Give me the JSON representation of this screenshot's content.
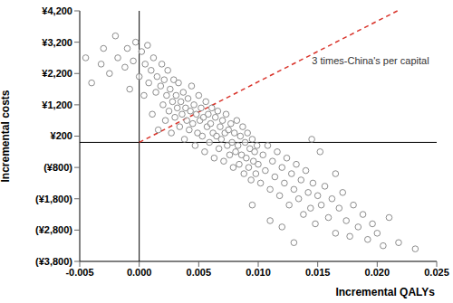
{
  "chart_data": {
    "type": "scatter",
    "x_label": "Incremental QALYs",
    "y_label": "Incremental costs",
    "color": "#808080",
    "marker": "circle",
    "grid": false,
    "xlim": [
      -0.005,
      0.025
    ],
    "xticks": [
      -0.005,
      {
        "value": 0,
        "label": "0.000"
      },
      0.005,
      {
        "value": 0.01,
        "label": "0.010"
      },
      0.015,
      {
        "value": 0.02,
        "label": "0.020"
      },
      0.025
    ],
    "ylim": [
      -3800,
      4200
    ],
    "yticks": [
      {
        "value": 4200,
        "label": "¥4,200"
      },
      {
        "value": 3200,
        "label": "¥3,200"
      },
      {
        "value": 2200,
        "label": "¥2,200"
      },
      {
        "value": 1200,
        "label": "¥1,200"
      },
      {
        "value": 200,
        "label": "¥200"
      },
      {
        "value": -800,
        "label": "(¥800)"
      },
      {
        "value": -1800,
        "label": "(¥1,800)"
      },
      {
        "value": -2800,
        "label": "(¥2,800)"
      },
      {
        "value": -3800,
        "label": "(¥3,800)"
      }
    ],
    "annotations": [
      {
        "text": "3 times-China's per capital",
        "x": [
          0,
          0.0217
        ],
        "y": [
          0,
          4200
        ],
        "color": "#d9342b",
        "line_style": "dashed"
      }
    ],
    "x": [
      -0.0045,
      -0.004,
      -0.0032,
      -0.003,
      -0.0025,
      -0.002,
      -0.0018,
      -0.0012,
      -0.001,
      -0.0008,
      -0.0005,
      -0.0003,
      0.0,
      0.0002,
      0.0004,
      0.0005,
      0.0007,
      0.0008,
      0.001,
      0.0011,
      0.0012,
      0.0014,
      0.0015,
      0.0016,
      0.0018,
      0.0019,
      0.002,
      0.0021,
      0.0022,
      0.0023,
      0.0024,
      0.0025,
      0.0026,
      0.0027,
      0.0028,
      0.0029,
      0.003,
      0.0031,
      0.0032,
      0.0033,
      0.0034,
      0.0035,
      0.0036,
      0.0037,
      0.0038,
      0.0039,
      0.004,
      0.0041,
      0.0042,
      0.0043,
      0.0044,
      0.0045,
      0.0046,
      0.0047,
      0.0048,
      0.0049,
      0.005,
      0.0051,
      0.0052,
      0.0053,
      0.0054,
      0.0055,
      0.0056,
      0.0057,
      0.0058,
      0.0059,
      0.006,
      0.0061,
      0.0062,
      0.0063,
      0.0064,
      0.0065,
      0.0066,
      0.0067,
      0.0068,
      0.0069,
      0.007,
      0.0071,
      0.0072,
      0.0073,
      0.0074,
      0.0075,
      0.0076,
      0.0077,
      0.0078,
      0.0079,
      0.008,
      0.0081,
      0.0082,
      0.0083,
      0.0084,
      0.0085,
      0.0086,
      0.0087,
      0.0088,
      0.0089,
      0.009,
      0.0091,
      0.0092,
      0.0093,
      0.0094,
      0.0095,
      0.0096,
      0.0097,
      0.0098,
      0.0099,
      0.01,
      0.0102,
      0.0104,
      0.0106,
      0.0108,
      0.011,
      0.0112,
      0.0114,
      0.0116,
      0.0118,
      0.012,
      0.0122,
      0.0124,
      0.0126,
      0.0128,
      0.013,
      0.0132,
      0.0134,
      0.0136,
      0.0138,
      0.014,
      0.0142,
      0.0144,
      0.0146,
      0.0148,
      0.015,
      0.0153,
      0.0156,
      0.0159,
      0.0162,
      0.0165,
      0.0168,
      0.0171,
      0.0174,
      0.0177,
      0.018,
      0.0184,
      0.0188,
      0.0192,
      0.0196,
      0.02,
      0.0205,
      0.021,
      0.0218,
      0.0232,
      0.0152,
      0.0145,
      0.0165,
      0.0095,
      0.011,
      0.013,
      0.012
    ],
    "values": [
      2700,
      1900,
      2500,
      3000,
      2200,
      3400,
      2700,
      2400,
      3000,
      1700,
      2600,
      3200,
      2100,
      2900,
      1500,
      2500,
      3100,
      1900,
      2300,
      900,
      2700,
      1600,
      2100,
      400,
      1800,
      2500,
      1200,
      2000,
      700,
      1500,
      2300,
      1000,
      1700,
      300,
      1300,
      2000,
      800,
      1500,
      1100,
      1900,
      500,
      1300,
      900,
      1600,
      100,
      1100,
      700,
      1400,
      400,
      1000,
      1800,
      600,
      1200,
      -100,
      900,
      300,
      1500,
      700,
      1100,
      200,
      800,
      -300,
      1300,
      500,
      900,
      0,
      600,
      1100,
      300,
      -500,
      800,
      200,
      1000,
      -200,
      500,
      100,
      700,
      -600,
      300,
      900,
      -100,
      400,
      -400,
      600,
      0,
      -800,
      300,
      -300,
      700,
      -100,
      -700,
      200,
      -400,
      500,
      -1000,
      0,
      -500,
      300,
      -800,
      -200,
      -1200,
      100,
      -600,
      -300,
      -1000,
      -100,
      -700,
      -1300,
      -400,
      -900,
      -100,
      -1500,
      -600,
      -1100,
      -300,
      -1700,
      -800,
      -1300,
      -500,
      -2000,
      -1000,
      -1500,
      -700,
      -1800,
      -1200,
      -2300,
      -900,
      -1600,
      -2100,
      -1300,
      -2600,
      -1700,
      -2000,
      -1400,
      -2400,
      -1800,
      -2900,
      -2100,
      -1600,
      -2500,
      -3000,
      -2000,
      -2700,
      -2300,
      -3100,
      -2600,
      -2900,
      -3300,
      -2400,
      -3200,
      -3400,
      -300,
      100,
      -1000,
      -2000,
      -2500,
      -3200,
      -2700
    ]
  }
}
